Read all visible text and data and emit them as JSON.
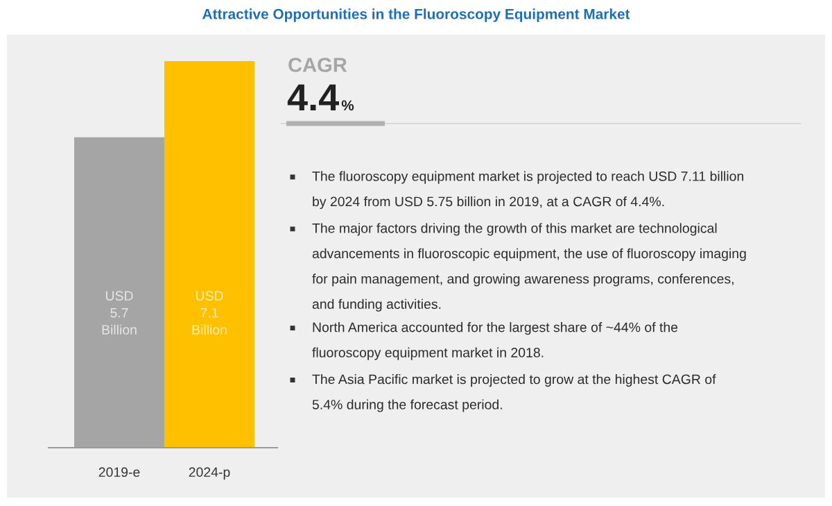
{
  "chart_data": {
    "type": "bar",
    "title": "Attractive Opportunities in the Fluoroscopy Equipment Market",
    "categories": [
      "2019-e",
      "2024-p"
    ],
    "values": [
      5.7,
      7.1
    ],
    "colors": [
      "#a5a5a5",
      "#ffc000"
    ],
    "value_labels": [
      "USD\n5.7\nBillion",
      "USD\n7.1\nBillion"
    ],
    "annotations": [
      "CAGR",
      "4.4%",
      "The fluoroscopy equipment market is projected to reach USD 7.11 billion by 2024 from USD 5.75 billion in 2019, at a CAGR of 4.4%.",
      "The major factors driving the growth of this market are technological advancements in fluoroscopic equipment, the use of fluoroscopy imaging for pain management, and growing awareness programs, conferences, and funding activities.",
      "North America accounted for the largest share of ~44% of the fluoroscopy equipment market in 2018.",
      "The Asia Pacific market is projected to grow at the highest CAGR of 5.4% during the forecast period."
    ]
  }
}
